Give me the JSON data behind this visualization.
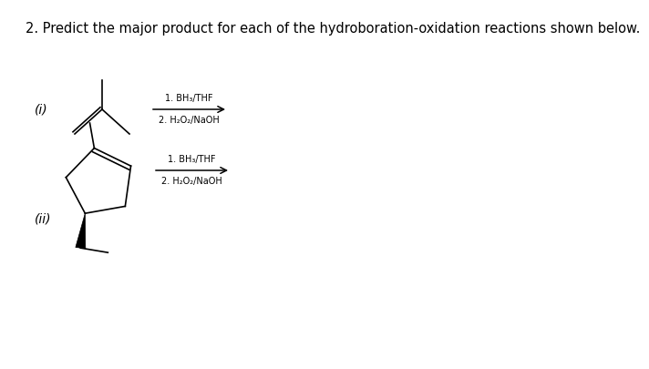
{
  "title": "2. Predict the major product for each of the hydroboration-oxidation reactions shown below.",
  "title_fontsize": 10.5,
  "background_color": "#ffffff",
  "text_color": "#000000",
  "reaction_i_label": "(i)",
  "reaction_ii_label": "(ii)",
  "step1_i": "1. BH₃/THF",
  "step2_i": "2. H₂O₂/NaOH",
  "step1_ii": "1. BH₃/THF",
  "step2_ii": "2. H₂O₂/NaOH",
  "small_fontsize": 7.0,
  "label_fontsize": 10
}
